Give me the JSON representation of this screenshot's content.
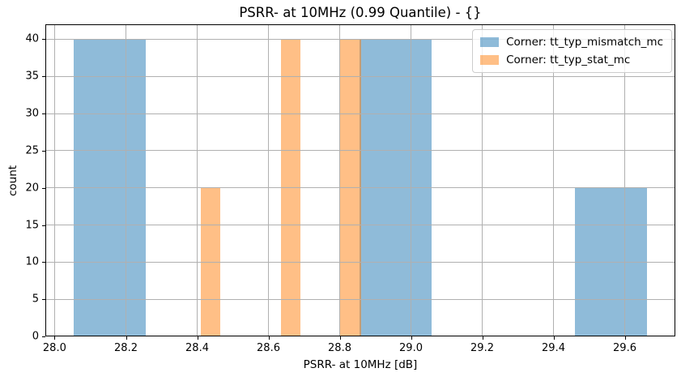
{
  "chart_data": {
    "type": "bar",
    "subtype": "histogram",
    "title": "PSRR- at 10MHz (0.99 Quantile) - {}",
    "xlabel": "PSRR- at 10MHz [dB]",
    "ylabel": "count",
    "xlim": [
      27.974,
      29.742
    ],
    "ylim": [
      0,
      42
    ],
    "xticks": [
      28.0,
      28.2,
      28.4,
      28.6,
      28.8,
      29.0,
      29.2,
      29.4,
      29.6
    ],
    "xtick_labels": [
      "28.0",
      "28.2",
      "28.4",
      "28.6",
      "28.8",
      "29.0",
      "29.2",
      "29.4",
      "29.6"
    ],
    "yticks": [
      0,
      5,
      10,
      15,
      20,
      25,
      30,
      35,
      40
    ],
    "ytick_labels": [
      "0",
      "5",
      "10",
      "15",
      "20",
      "25",
      "30",
      "35",
      "40"
    ],
    "grid": true,
    "grid_color": "#b0b0b0",
    "background": "#ffffff",
    "legend_position": "upper right",
    "series": [
      {
        "name": "Corner: tt_typ_mismatch_mc",
        "color": "#1f77b4",
        "alpha": 0.5,
        "fill": "rgba(31,119,180,0.5)",
        "bars": [
          {
            "x0": 28.054,
            "x1": 28.255,
            "count": 40
          },
          {
            "x0": 28.855,
            "x1": 29.059,
            "count": 40
          },
          {
            "x0": 29.461,
            "x1": 29.662,
            "count": 20
          }
        ]
      },
      {
        "name": "Corner: tt_typ_stat_mc",
        "color": "#ff7f0e",
        "alpha": 0.5,
        "fill": "rgba(255,127,14,0.5)",
        "bars": [
          {
            "x0": 28.411,
            "x1": 28.466,
            "count": 20
          },
          {
            "x0": 28.635,
            "x1": 28.691,
            "count": 40
          },
          {
            "x0": 28.802,
            "x1": 28.86,
            "count": 40
          }
        ]
      }
    ]
  }
}
